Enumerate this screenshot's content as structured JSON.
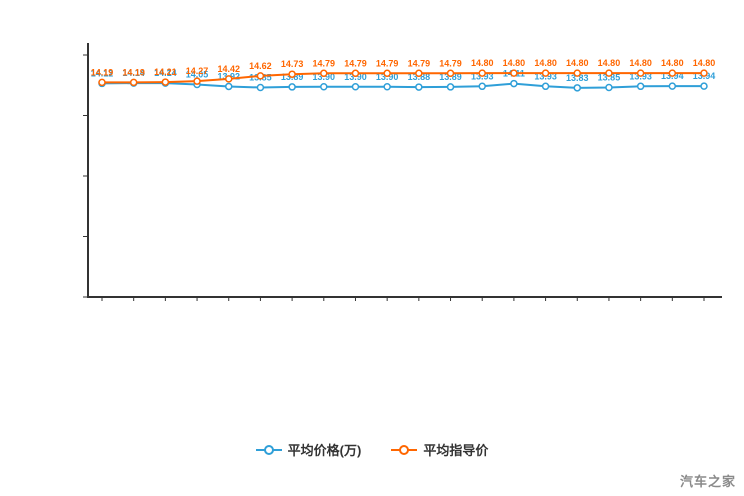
{
  "chart_data": {
    "type": "line",
    "title": "",
    "xlabel": "",
    "ylabel": "",
    "ylim": [
      0,
      16
    ],
    "y_ticks": [
      0,
      4,
      8,
      12,
      16
    ],
    "grid": false,
    "legend_position": "bottom",
    "series": [
      {
        "name": "平均价格(万)",
        "color": "#2f9fd8",
        "values": [
          14.12,
          14.14,
          14.14,
          14.05,
          13.92,
          13.85,
          13.89,
          13.9,
          13.9,
          13.9,
          13.88,
          13.89,
          13.93,
          14.11,
          13.93,
          13.83,
          13.85,
          13.93,
          13.94,
          13.94
        ]
      },
      {
        "name": "平均指导价",
        "color": "#ff6600",
        "values": [
          14.19,
          14.19,
          14.21,
          14.27,
          14.42,
          14.62,
          14.73,
          14.79,
          14.79,
          14.79,
          14.79,
          14.79,
          14.8,
          14.8,
          14.8,
          14.8,
          14.8,
          14.8,
          14.8,
          14.8
        ]
      }
    ]
  },
  "legend": {
    "items": [
      {
        "label": "平均价格(万)",
        "color": "#2f9fd8"
      },
      {
        "label": "平均指导价",
        "color": "#ff6600"
      }
    ]
  },
  "watermark": "汽车之家"
}
